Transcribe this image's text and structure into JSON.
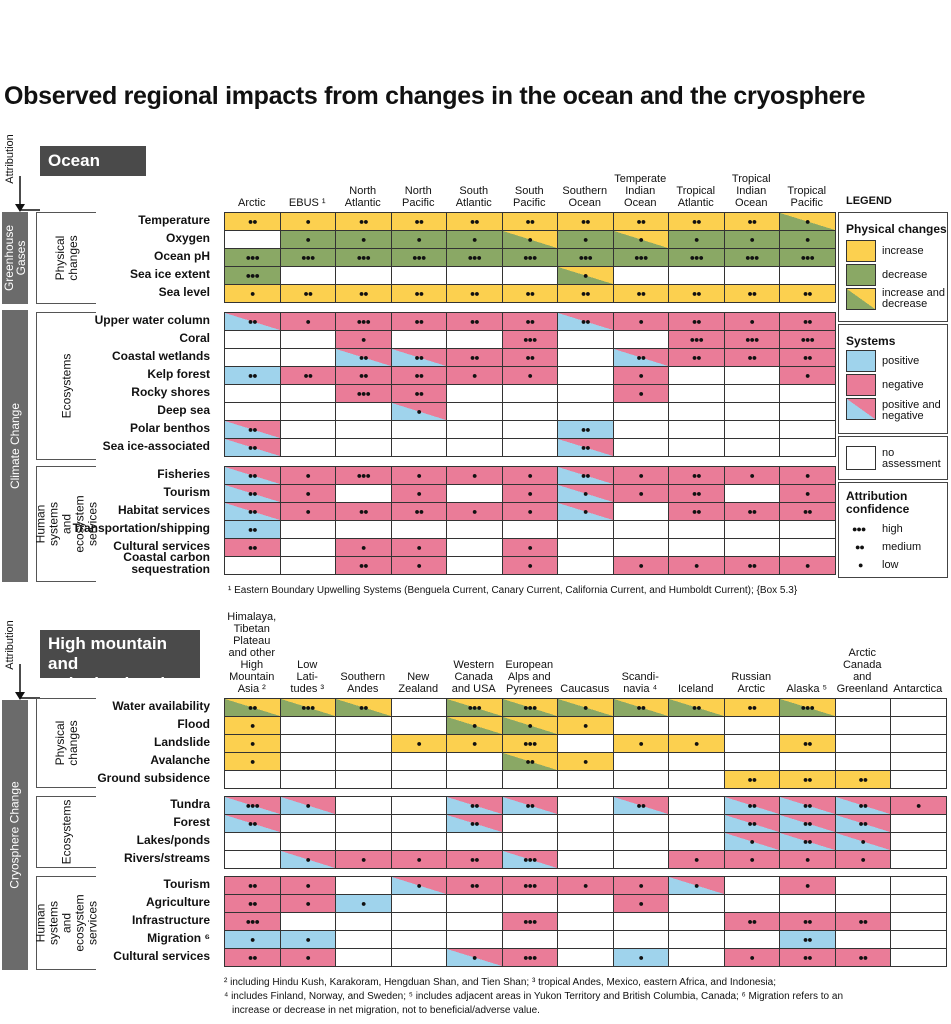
{
  "title": "Observed regional impacts from changes in the ocean and the cryosphere",
  "colors": {
    "increase": "#fcd04f",
    "decrease": "#8aa865",
    "positive": "#9fd3ec",
    "negative": "#ea7c98",
    "none": "#ffffff",
    "dark": "#4a4a4a",
    "bar": "#6b6b6b"
  },
  "ocean": {
    "section_title": "Ocean",
    "attribution_label": "Attribution",
    "driver_labels": [
      "Greenhouse\nGases",
      "Climate Change"
    ],
    "group_labels": [
      "Physical\nchanges",
      "Ecosystems",
      "Human systems and\necosystem services"
    ],
    "columns": [
      "Arctic",
      "EBUS ¹",
      "North\nAtlantic",
      "North\nPacific",
      "South\nAtlantic",
      "South\nPacific",
      "Southern\nOcean",
      "Temperate\nIndian\nOcean",
      "Tropical\nAtlantic",
      "Tropical\nIndian\nOcean",
      "Tropical\nPacific"
    ],
    "rows": [
      {
        "label": "Temperature",
        "cells": [
          "I2",
          "I1",
          "I2",
          "I2",
          "I2",
          "I2",
          "I2",
          "I2",
          "I2",
          "I2",
          "M1"
        ]
      },
      {
        "label": "Oxygen",
        "cells": [
          "N0",
          "D1",
          "D1",
          "D1",
          "D1",
          "M1",
          "D1",
          "M1",
          "D1",
          "D1",
          "D1"
        ]
      },
      {
        "label": "Ocean pH",
        "cells": [
          "D3",
          "D3",
          "D3",
          "D3",
          "D3",
          "D3",
          "D3",
          "D3",
          "D3",
          "D3",
          "D3"
        ]
      },
      {
        "label": "Sea ice extent",
        "cells": [
          "D3",
          "N0",
          "N0",
          "N0",
          "N0",
          "N0",
          "M1",
          "N0",
          "N0",
          "N0",
          "N0"
        ]
      },
      {
        "label": "Sea level",
        "cells": [
          "I1",
          "I2",
          "I2",
          "I2",
          "I2",
          "I2",
          "I2",
          "I2",
          "I2",
          "I2",
          "I2"
        ]
      },
      {
        "label": "Upper water column",
        "cells": [
          "B2",
          "G1",
          "G3",
          "G2",
          "G2",
          "G2",
          "B2",
          "G1",
          "G2",
          "G1",
          "G2"
        ]
      },
      {
        "label": "Coral",
        "cells": [
          "N0",
          "N0",
          "G1",
          "N0",
          "N0",
          "G3",
          "N0",
          "N0",
          "G3",
          "G3",
          "G3"
        ]
      },
      {
        "label": "Coastal wetlands",
        "cells": [
          "N0",
          "N0",
          "B2",
          "B2",
          "G2",
          "G2",
          "N0",
          "B2",
          "G2",
          "G2",
          "G2"
        ]
      },
      {
        "label": "Kelp forest",
        "cells": [
          "P2",
          "G2",
          "G2",
          "G2",
          "G1",
          "G1",
          "N0",
          "G1",
          "N0",
          "N0",
          "G1"
        ]
      },
      {
        "label": "Rocky shores",
        "cells": [
          "N0",
          "N0",
          "G3",
          "G2",
          "N0",
          "N0",
          "N0",
          "G1",
          "N0",
          "N0",
          "N0"
        ]
      },
      {
        "label": "Deep sea",
        "cells": [
          "N0",
          "N0",
          "N0",
          "B1",
          "N0",
          "N0",
          "N0",
          "N0",
          "N0",
          "N0",
          "N0"
        ]
      },
      {
        "label": "Polar benthos",
        "cells": [
          "B2",
          "N0",
          "N0",
          "N0",
          "N0",
          "N0",
          "P2",
          "N0",
          "N0",
          "N0",
          "N0"
        ]
      },
      {
        "label": "Sea ice-associated",
        "cells": [
          "B2",
          "N0",
          "N0",
          "N0",
          "N0",
          "N0",
          "B2",
          "N0",
          "N0",
          "N0",
          "N0"
        ]
      },
      {
        "label": "Fisheries",
        "cells": [
          "B2",
          "G1",
          "G3",
          "G1",
          "G1",
          "G1",
          "B2",
          "G1",
          "G2",
          "G1",
          "G1"
        ]
      },
      {
        "label": "Tourism",
        "cells": [
          "B2",
          "G1",
          "N0",
          "G1",
          "N0",
          "G1",
          "B1",
          "G1",
          "G2",
          "N0",
          "G1"
        ]
      },
      {
        "label": "Habitat services",
        "cells": [
          "B2",
          "G1",
          "G2",
          "G2",
          "G1",
          "G1",
          "B1",
          "N0",
          "G2",
          "G2",
          "G2"
        ]
      },
      {
        "label": "Transportation/shipping",
        "cells": [
          "P2",
          "N0",
          "N0",
          "N0",
          "N0",
          "N0",
          "N0",
          "N0",
          "N0",
          "N0",
          "N0"
        ]
      },
      {
        "label": "Cultural services",
        "cells": [
          "G2",
          "N0",
          "G1",
          "G1",
          "N0",
          "G1",
          "N0",
          "N0",
          "N0",
          "N0",
          "N0"
        ]
      },
      {
        "label": "Coastal carbon\nsequestration",
        "cells": [
          "N0",
          "N0",
          "G2",
          "G1",
          "N0",
          "G1",
          "N0",
          "G1",
          "G1",
          "G2",
          "G1"
        ]
      }
    ],
    "footnote": "¹ Eastern Boundary Upwelling Systems (Benguela Current, Canary Current, California Current, and Humboldt Current); {Box 5.3}"
  },
  "mountain": {
    "section_title": "High mountain and\npolar land regions",
    "attribution_label": "Attribution",
    "driver_label": "Cryosphere Change",
    "group_labels": [
      "Physical\nchanges",
      "Ecosystems",
      "Human systems\nand ecosystem\nservices"
    ],
    "columns": [
      "Himalaya,\nTibetan Plateau\nand other\nHigh Mountain\nAsia ²",
      "Low\nLati-\ntudes ³",
      "Southern\nAndes",
      "New\nZealand",
      "Western\nCanada\nand USA",
      "European\nAlps and\nPyrenees",
      "Caucasus",
      "Scandi-\nnavia ⁴",
      "Iceland",
      "Russian\nArctic",
      "Alaska ⁵",
      "Arctic\nCanada and\nGreenland",
      "Antarctica"
    ],
    "rows": [
      {
        "label": "Water availability",
        "cells": [
          "M2",
          "M3",
          "M2",
          "N0",
          "M3",
          "M3",
          "M1",
          "M2",
          "M2",
          "I2",
          "M3",
          "N0",
          "N0"
        ]
      },
      {
        "label": "Flood",
        "cells": [
          "I1",
          "N0",
          "N0",
          "N0",
          "M1",
          "M1",
          "I1",
          "N0",
          "N0",
          "N0",
          "N0",
          "N0",
          "N0"
        ]
      },
      {
        "label": "Landslide",
        "cells": [
          "I1",
          "N0",
          "N0",
          "I1",
          "I1",
          "I3",
          "N0",
          "I1",
          "I1",
          "N0",
          "I2",
          "N0",
          "N0"
        ]
      },
      {
        "label": "Avalanche",
        "cells": [
          "I1",
          "N0",
          "N0",
          "N0",
          "N0",
          "M2",
          "I1",
          "N0",
          "N0",
          "N0",
          "N0",
          "N0",
          "N0"
        ]
      },
      {
        "label": "Ground subsidence",
        "cells": [
          "N0",
          "N0",
          "N0",
          "N0",
          "N0",
          "N0",
          "N0",
          "N0",
          "N0",
          "I2",
          "I2",
          "I2",
          "N0"
        ]
      },
      {
        "label": "Tundra",
        "cells": [
          "B3",
          "B1",
          "N0",
          "N0",
          "B2",
          "B2",
          "N0",
          "B2",
          "N0",
          "B2",
          "B2",
          "B2",
          "G1"
        ]
      },
      {
        "label": "Forest",
        "cells": [
          "B2",
          "N0",
          "N0",
          "N0",
          "B2",
          "N0",
          "N0",
          "N0",
          "N0",
          "B2",
          "B2",
          "B2",
          "N0"
        ]
      },
      {
        "label": "Lakes/ponds",
        "cells": [
          "N0",
          "N0",
          "N0",
          "N0",
          "N0",
          "N0",
          "N0",
          "N0",
          "N0",
          "B1",
          "B2",
          "B1",
          "N0"
        ]
      },
      {
        "label": "Rivers/streams",
        "cells": [
          "N0",
          "B1",
          "G1",
          "G1",
          "G2",
          "B3",
          "N0",
          "N0",
          "G1",
          "G1",
          "G1",
          "G1",
          "N0"
        ]
      },
      {
        "label": "Tourism",
        "cells": [
          "G2",
          "G1",
          "N0",
          "B1",
          "G2",
          "G3",
          "G1",
          "G1",
          "B1",
          "N0",
          "G1",
          "N0",
          "N0"
        ]
      },
      {
        "label": "Agriculture",
        "cells": [
          "G2",
          "G1",
          "P1",
          "N0",
          "N0",
          "N0",
          "N0",
          "G1",
          "N0",
          "N0",
          "N0",
          "N0",
          "N0"
        ]
      },
      {
        "label": "Infrastructure",
        "cells": [
          "G3",
          "N0",
          "N0",
          "N0",
          "N0",
          "G3",
          "N0",
          "N0",
          "N0",
          "G2",
          "G2",
          "G2",
          "N0"
        ]
      },
      {
        "label": "Migration ⁶",
        "cells": [
          "P1",
          "P1",
          "N0",
          "N0",
          "N0",
          "N0",
          "N0",
          "N0",
          "N0",
          "N0",
          "P2",
          "N0",
          "N0"
        ]
      },
      {
        "label": "Cultural services",
        "cells": [
          "G2",
          "G1",
          "N0",
          "N0",
          "B1",
          "G3",
          "N0",
          "P1",
          "N0",
          "G1",
          "G2",
          "G2",
          "N0"
        ]
      }
    ],
    "footnotes": [
      "² including Hindu Kush, Karakoram, Hengduan Shan, and Tien Shan; ³ tropical Andes, Mexico, eastern Africa, and Indonesia;",
      "⁴ includes Finland, Norway, and Sweden; ⁵ includes adjacent areas in Yukon Territory and British Columbia, Canada; ⁶ Migration refers to an",
      "increase or decrease in net migration, not to beneficial/adverse value."
    ]
  },
  "legend": {
    "title": "LEGEND",
    "physical_title": "Physical changes",
    "increase": "increase",
    "decrease": "decrease",
    "incdec": "increase and\ndecrease",
    "systems_title": "Systems",
    "positive": "positive",
    "negative": "negative",
    "posneg": "positive and\nnegative",
    "no_assessment": "no\nassessment",
    "confidence_title": "Attribution\nconfidence",
    "high": "high",
    "medium": "medium",
    "low": "low"
  }
}
